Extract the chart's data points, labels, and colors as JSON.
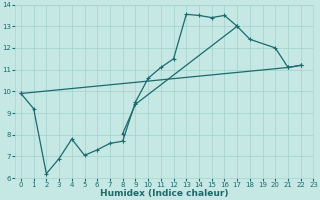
{
  "bg_color": "#c5e8e5",
  "line_color": "#1a6b6b",
  "grid_color": "#a8d4d0",
  "xlabel": "Humidex (Indice chaleur)",
  "xlim": [
    -0.5,
    23
  ],
  "ylim": [
    6,
    14
  ],
  "xticks": [
    0,
    1,
    2,
    3,
    4,
    5,
    6,
    7,
    8,
    9,
    10,
    11,
    12,
    13,
    14,
    15,
    16,
    17,
    18,
    19,
    20,
    21,
    22,
    23
  ],
  "yticks": [
    6,
    7,
    8,
    9,
    10,
    11,
    12,
    13,
    14
  ],
  "line1_x": [
    0,
    1,
    2,
    3,
    4,
    5,
    6,
    7,
    8,
    9,
    10,
    11,
    12,
    13,
    14,
    15,
    16,
    17
  ],
  "line1_y": [
    9.9,
    9.2,
    6.2,
    6.9,
    7.8,
    7.05,
    7.3,
    7.6,
    7.7,
    9.5,
    10.6,
    11.1,
    11.5,
    13.55,
    13.5,
    13.4,
    13.5,
    13.0
  ],
  "line2_x": [
    8,
    9,
    17,
    18,
    20,
    21,
    22
  ],
  "line2_y": [
    8.05,
    9.4,
    13.0,
    12.4,
    12.0,
    11.1,
    11.2
  ],
  "line3_x": [
    0,
    21,
    22
  ],
  "line3_y": [
    9.9,
    11.1,
    11.2
  ],
  "tick_fontsize": 5,
  "label_fontsize": 6.5
}
